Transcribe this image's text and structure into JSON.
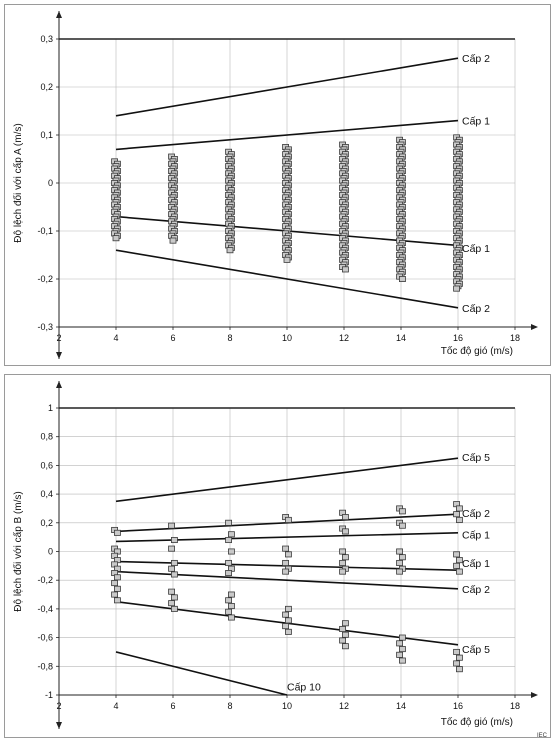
{
  "footer_tag": "IEC",
  "chart_data": [
    {
      "type": "scatter",
      "title": "",
      "xlabel": "Tốc độ gió (m/s)",
      "ylabel": "Độ lệch đối với cấp A  (m/s)",
      "xlim": [
        2,
        18
      ],
      "ylim": [
        -0.3,
        0.3
      ],
      "x_ticks": [
        2,
        4,
        6,
        8,
        10,
        12,
        14,
        16,
        18
      ],
      "y_ticks": [
        -0.3,
        -0.2,
        -0.1,
        0,
        0.1,
        0.2,
        0.3
      ],
      "y_tick_labels": [
        "-0,3",
        "-0,2",
        "-0,1",
        "0",
        "0,1",
        "0,2",
        "0,3"
      ],
      "grid": true,
      "scatter_clusters": [
        {
          "x": 4,
          "y_min": -0.115,
          "y_max": 0.045
        },
        {
          "x": 6,
          "y_min": -0.12,
          "y_max": 0.055
        },
        {
          "x": 8,
          "y_min": -0.14,
          "y_max": 0.065
        },
        {
          "x": 10,
          "y_min": -0.16,
          "y_max": 0.075
        },
        {
          "x": 12,
          "y_min": -0.18,
          "y_max": 0.08
        },
        {
          "x": 14,
          "y_min": -0.2,
          "y_max": 0.09
        },
        {
          "x": 16,
          "y_min": -0.22,
          "y_max": 0.095
        }
      ],
      "limit_lines": [
        {
          "label": "Cấp 2",
          "x": [
            4,
            16
          ],
          "y": [
            0.14,
            0.26
          ],
          "label_y": 0.26
        },
        {
          "label": "Cấp 1",
          "x": [
            4,
            16
          ],
          "y": [
            0.07,
            0.13
          ],
          "label_y": 0.13
        },
        {
          "label": "Cấp 1",
          "x": [
            4,
            16
          ],
          "y": [
            -0.07,
            -0.13
          ],
          "label_y": -0.135
        },
        {
          "label": "Cấp 2",
          "x": [
            4,
            16
          ],
          "y": [
            -0.14,
            -0.26
          ],
          "label_y": -0.26
        }
      ]
    },
    {
      "type": "scatter",
      "title": "",
      "xlabel": "Tốc độ gió (m/s)",
      "ylabel": "Độ lệch đối với cấp B  (m/s)",
      "xlim": [
        2,
        18
      ],
      "ylim": [
        -1,
        1
      ],
      "x_ticks": [
        2,
        4,
        6,
        8,
        10,
        12,
        14,
        16,
        18
      ],
      "y_ticks": [
        -1,
        -0.8,
        -0.6,
        -0.4,
        -0.2,
        0,
        0.2,
        0.4,
        0.6,
        0.8,
        1
      ],
      "y_tick_labels": [
        "-1",
        "-0,8",
        "-0,6",
        "-0,4",
        "-0,2",
        "0",
        "0,2",
        "0,4",
        "0,6",
        "0,8",
        "1"
      ],
      "grid": true,
      "scatter_groups": [
        {
          "x": 4,
          "ys": [
            0.15,
            0.13,
            0.02,
            0.0,
            -0.03,
            -0.06,
            -0.09,
            -0.12,
            -0.15,
            -0.18,
            -0.22,
            -0.26,
            -0.3,
            -0.34
          ]
        },
        {
          "x": 6,
          "ys": [
            0.18,
            0.08,
            0.02,
            -0.08,
            -0.12,
            -0.16,
            -0.28,
            -0.32,
            -0.36,
            -0.4
          ]
        },
        {
          "x": 8,
          "ys": [
            0.2,
            0.12,
            0.08,
            0.0,
            -0.08,
            -0.12,
            -0.15,
            -0.3,
            -0.34,
            -0.38,
            -0.42,
            -0.46
          ]
        },
        {
          "x": 10,
          "ys": [
            0.24,
            0.22,
            0.02,
            -0.02,
            -0.08,
            -0.12,
            -0.14,
            -0.4,
            -0.44,
            -0.48,
            -0.52,
            -0.56
          ]
        },
        {
          "x": 12,
          "ys": [
            0.27,
            0.24,
            0.16,
            0.14,
            0.0,
            -0.04,
            -0.08,
            -0.12,
            -0.14,
            -0.5,
            -0.54,
            -0.58,
            -0.62,
            -0.66
          ]
        },
        {
          "x": 14,
          "ys": [
            0.3,
            0.28,
            0.2,
            0.18,
            0.0,
            -0.04,
            -0.08,
            -0.12,
            -0.14,
            -0.6,
            -0.64,
            -0.68,
            -0.72,
            -0.76
          ]
        },
        {
          "x": 16,
          "ys": [
            0.33,
            0.3,
            0.26,
            0.22,
            -0.02,
            -0.06,
            -0.1,
            -0.14,
            -0.7,
            -0.74,
            -0.78,
            -0.82
          ]
        }
      ],
      "limit_lines": [
        {
          "label": "Cấp 5",
          "x": [
            4,
            16
          ],
          "y": [
            0.35,
            0.65
          ],
          "label_y": 0.66
        },
        {
          "label": "Cấp 2",
          "x": [
            4,
            16
          ],
          "y": [
            0.14,
            0.26
          ],
          "label_y": 0.27
        },
        {
          "label": "Cấp 1",
          "x": [
            4,
            16
          ],
          "y": [
            0.07,
            0.13
          ],
          "label_y": 0.12
        },
        {
          "label": "Cấp 1",
          "x": [
            4,
            16
          ],
          "y": [
            -0.07,
            -0.13
          ],
          "label_y": -0.08
        },
        {
          "label": "Cấp 2",
          "x": [
            4,
            16
          ],
          "y": [
            -0.14,
            -0.26
          ],
          "label_y": -0.26
        },
        {
          "label": "Cấp 5",
          "x": [
            4,
            16
          ],
          "y": [
            -0.35,
            -0.65
          ],
          "label_y": -0.68
        },
        {
          "label": "Cấp 10",
          "x": [
            4,
            10
          ],
          "y": [
            -0.7,
            -1.0
          ],
          "label_y": -0.94,
          "label_x": 10
        }
      ]
    }
  ]
}
